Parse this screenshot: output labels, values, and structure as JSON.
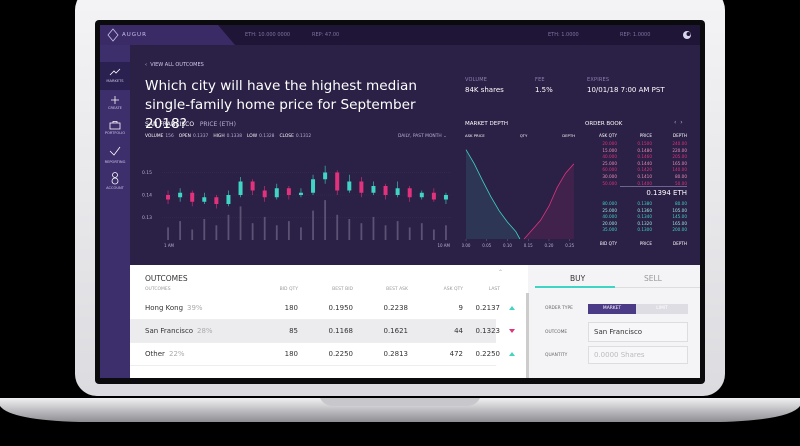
{
  "header": {
    "logo": "AUGUR",
    "left_stats": [
      "ETH: 10.000 0000",
      "REP: 47.00"
    ],
    "right_stats": [
      "ETH: 1.0000",
      "REP: 1.0000"
    ]
  },
  "nav": [
    "MARKETS",
    "CREATE",
    "PORTFOLIO",
    "REPORTING",
    "ACCOUNT"
  ],
  "market": {
    "back": "VIEW ALL OUTCOMES",
    "title": "Which city will have the highest median single-family home price for September 2018?",
    "stats": [
      {
        "label": "VOLUME",
        "value": "84K shares"
      },
      {
        "label": "FEE",
        "value": "1.5%"
      },
      {
        "label": "EXPIRES",
        "value": "10/01/18 7:00 AM PST"
      }
    ]
  },
  "chart_data": {
    "type": "candlestick",
    "title": "SAN FRANCISCO",
    "subtitle": "PRICE (ETH)",
    "period": "DAILY, PAST MONTH",
    "summary": [
      {
        "label": "VOLUME",
        "value": "156"
      },
      {
        "label": "OPEN",
        "value": "0.1337"
      },
      {
        "label": "HIGH",
        "value": "0.1338"
      },
      {
        "label": "LOW",
        "value": "0.1328"
      },
      {
        "label": "CLOSE",
        "value": "0.1312"
      }
    ],
    "x_labels": [
      "1 AM",
      "10 AM"
    ],
    "open": [
      0.14,
      0.139,
      0.141,
      0.137,
      0.139,
      0.136,
      0.14,
      0.146,
      0.142,
      0.139,
      0.143,
      0.14,
      0.141,
      0.147,
      0.15,
      0.142,
      0.146,
      0.141,
      0.144,
      0.14,
      0.143,
      0.139,
      0.141,
      0.138
    ],
    "close": [
      0.138,
      0.141,
      0.137,
      0.139,
      0.136,
      0.14,
      0.146,
      0.142,
      0.139,
      0.143,
      0.14,
      0.141,
      0.147,
      0.15,
      0.142,
      0.146,
      0.141,
      0.144,
      0.14,
      0.143,
      0.139,
      0.141,
      0.138,
      0.14
    ],
    "high": [
      0.142,
      0.143,
      0.142,
      0.141,
      0.14,
      0.142,
      0.148,
      0.147,
      0.144,
      0.145,
      0.144,
      0.143,
      0.149,
      0.153,
      0.151,
      0.149,
      0.148,
      0.146,
      0.145,
      0.146,
      0.144,
      0.142,
      0.143,
      0.141
    ],
    "low": [
      0.136,
      0.137,
      0.135,
      0.136,
      0.134,
      0.135,
      0.139,
      0.14,
      0.137,
      0.138,
      0.138,
      0.139,
      0.14,
      0.145,
      0.14,
      0.141,
      0.139,
      0.14,
      0.138,
      0.139,
      0.137,
      0.138,
      0.137,
      0.136
    ],
    "volume": [
      30,
      45,
      25,
      50,
      35,
      60,
      80,
      40,
      55,
      35,
      45,
      30,
      70,
      95,
      60,
      50,
      40,
      55,
      35,
      45,
      30,
      40,
      25,
      35
    ],
    "ylim": [
      0.12,
      0.16
    ],
    "yticks": [
      0.15,
      0.14,
      0.13
    ],
    "volume_ylim": [
      0,
      100
    ],
    "up_color": "#3fd4c3",
    "down_color": "#e2327c",
    "volume_color": "#5c5276",
    "grid": true
  },
  "depth": {
    "title": "MARKET DEPTH",
    "columns": [
      "ASK PRICE",
      "QTY",
      "DEPTH"
    ],
    "xlim": [
      0,
      0.27
    ],
    "ylim": [
      0,
      100
    ],
    "xticks": [
      {
        "value": 0,
        "label": "0.00"
      },
      0.05,
      {
        "value": 0.1,
        "label": "0.10"
      },
      0.15,
      {
        "value": 0.2,
        "label": "0.20"
      },
      0.25
    ],
    "bids": {
      "x": [
        0,
        0.02,
        0.04,
        0.06,
        0.08,
        0.1,
        0.12,
        0.13
      ],
      "y": [
        95,
        80,
        62,
        45,
        30,
        18,
        8,
        0
      ],
      "color": "#3fd4c3"
    },
    "asks": {
      "x": [
        0.14,
        0.16,
        0.18,
        0.2,
        0.22,
        0.24,
        0.26
      ],
      "y": [
        0,
        10,
        20,
        35,
        55,
        70,
        80
      ],
      "color": "#e2327c"
    }
  },
  "order_book": {
    "title": "ORDER BOOK",
    "ask_columns": [
      "ASK QTY",
      "PRICE",
      "DEPTH"
    ],
    "asks": [
      [
        "20.000",
        "0.1500",
        "240.00"
      ],
      [
        "15.000",
        "0.1480",
        "220.00"
      ],
      [
        "40.000",
        "0.1460",
        "205.00"
      ],
      [
        "25.000",
        "0.1440",
        "165.00"
      ],
      [
        "60.000",
        "0.1420",
        "140.00"
      ],
      [
        "30.000",
        "0.1410",
        "80.00"
      ],
      [
        "50.000",
        "0.1400",
        "50.00"
      ]
    ],
    "mid": "0.1394 ETH",
    "bids": [
      [
        "80.000",
        "0.1380",
        "80.00"
      ],
      [
        "25.000",
        "0.1360",
        "105.00"
      ],
      [
        "40.000",
        "0.1340",
        "145.00"
      ],
      [
        "20.000",
        "0.1320",
        "165.00"
      ],
      [
        "35.000",
        "0.1300",
        "200.00"
      ]
    ],
    "bid_columns": [
      "BID QTY",
      "PRICE",
      "DEPTH"
    ]
  },
  "outcomes": {
    "title": "OUTCOMES",
    "columns": [
      "OUTCOMES",
      "BID QTY",
      "BEST BID",
      "BEST ASK",
      "ASK QTY",
      "LAST"
    ],
    "rows": [
      {
        "name": "Hong Kong",
        "pct": "39%",
        "bid_qty": "180",
        "best_bid": "0.1950",
        "best_ask": "0.2238",
        "ask_qty": "9",
        "last": "0.2137",
        "trend": "up"
      },
      {
        "name": "San Francisco",
        "pct": "28%",
        "bid_qty": "85",
        "best_bid": "0.1168",
        "best_ask": "0.1621",
        "ask_qty": "44",
        "last": "0.1323",
        "trend": "down"
      },
      {
        "name": "Other",
        "pct": "22%",
        "bid_qty": "180",
        "best_bid": "0.2250",
        "best_ask": "0.2813",
        "ask_qty": "472",
        "last": "0.2250",
        "trend": "up"
      }
    ]
  },
  "trade": {
    "tabs": [
      "BUY",
      "SELL"
    ],
    "order_type_label": "ORDER TYPE",
    "order_types": [
      "MARKET",
      "LIMIT"
    ],
    "outcome_label": "OUTCOME",
    "outcome": "San Francisco",
    "quantity_label": "QUANTITY",
    "quantity_placeholder": "0.0000 Shares"
  }
}
